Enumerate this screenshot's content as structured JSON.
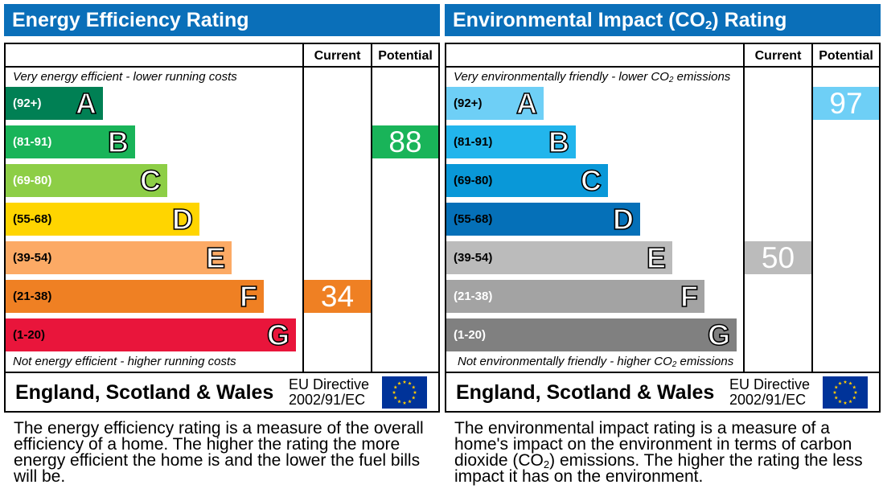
{
  "chart_data": [
    {
      "type": "bar",
      "title": "Energy Efficiency Rating",
      "columns": [
        "Current",
        "Potential"
      ],
      "top_note": "Very energy efficient - lower running costs",
      "bottom_note": "Not energy efficient - higher running costs",
      "bands": [
        {
          "letter": "A",
          "range": "(92+)",
          "color": "#008054",
          "range_color": "#ffffff"
        },
        {
          "letter": "B",
          "range": "(81-91)",
          "color": "#19b459",
          "range_color": "#ffffff"
        },
        {
          "letter": "C",
          "range": "(69-80)",
          "color": "#8dce46",
          "range_color": "#ffffff"
        },
        {
          "letter": "D",
          "range": "(55-68)",
          "color": "#ffd500",
          "range_color": "#000000"
        },
        {
          "letter": "E",
          "range": "(39-54)",
          "color": "#fcaa65",
          "range_color": "#000000"
        },
        {
          "letter": "F",
          "range": "(21-38)",
          "color": "#ef8023",
          "range_color": "#000000"
        },
        {
          "letter": "G",
          "range": "(1-20)",
          "color": "#e9153b",
          "range_color": "#000000"
        }
      ],
      "current": {
        "value": 34,
        "band": "F",
        "color": "#ef8023"
      },
      "potential": {
        "value": 88,
        "band": "B",
        "color": "#19b459"
      },
      "footer_country": "England, Scotland & Wales",
      "footer_directive_line1": "EU Directive",
      "footer_directive_line2": "2002/91/EC",
      "description": "The energy efficiency rating is a measure of the overall efficiency of a home. The higher the rating the more energy efficient the home is and the lower the fuel bills will be."
    },
    {
      "type": "bar",
      "title_pre": "Environmental Impact (CO",
      "title_sub": "2",
      "title_post": ") Rating",
      "columns": [
        "Current",
        "Potential"
      ],
      "top_note_pre": "Very environmentally friendly - lower CO",
      "top_note_sub": "2",
      "top_note_post": " emissions",
      "bottom_note_pre": "Not environmentally friendly - higher CO",
      "bottom_note_sub": "2",
      "bottom_note_post": " emissions",
      "bands": [
        {
          "letter": "A",
          "range": "(92+)",
          "color": "#6ecff6",
          "range_color": "#000000"
        },
        {
          "letter": "B",
          "range": "(81-91)",
          "color": "#22b5ec",
          "range_color": "#000000"
        },
        {
          "letter": "C",
          "range": "(69-80)",
          "color": "#0998d8",
          "range_color": "#000000"
        },
        {
          "letter": "D",
          "range": "(55-68)",
          "color": "#0570b8",
          "range_color": "#000000"
        },
        {
          "letter": "E",
          "range": "(39-54)",
          "color": "#bbbbbb",
          "range_color": "#000000"
        },
        {
          "letter": "F",
          "range": "(21-38)",
          "color": "#a3a3a3",
          "range_color": "#ffffff"
        },
        {
          "letter": "G",
          "range": "(1-20)",
          "color": "#808080",
          "range_color": "#ffffff"
        }
      ],
      "current": {
        "value": 50,
        "band": "E",
        "color": "#bbbbbb"
      },
      "potential": {
        "value": 97,
        "band": "A",
        "color": "#6ecff6"
      },
      "footer_country": "England, Scotland & Wales",
      "footer_directive_line1": "EU Directive",
      "footer_directive_line2": "2002/91/EC",
      "description_pre": "The environmental impact rating is a measure of a home's impact on the environment in terms of carbon dioxide (CO",
      "description_sub": "2",
      "description_post": ") emissions. The higher the rating the less impact it has on the environment."
    }
  ],
  "eu_flag": {
    "icon": "eu-flag-icon",
    "background": "#003399",
    "stars": "#ffcc00"
  },
  "colors": {
    "title_bar": "#0a6fb9"
  }
}
